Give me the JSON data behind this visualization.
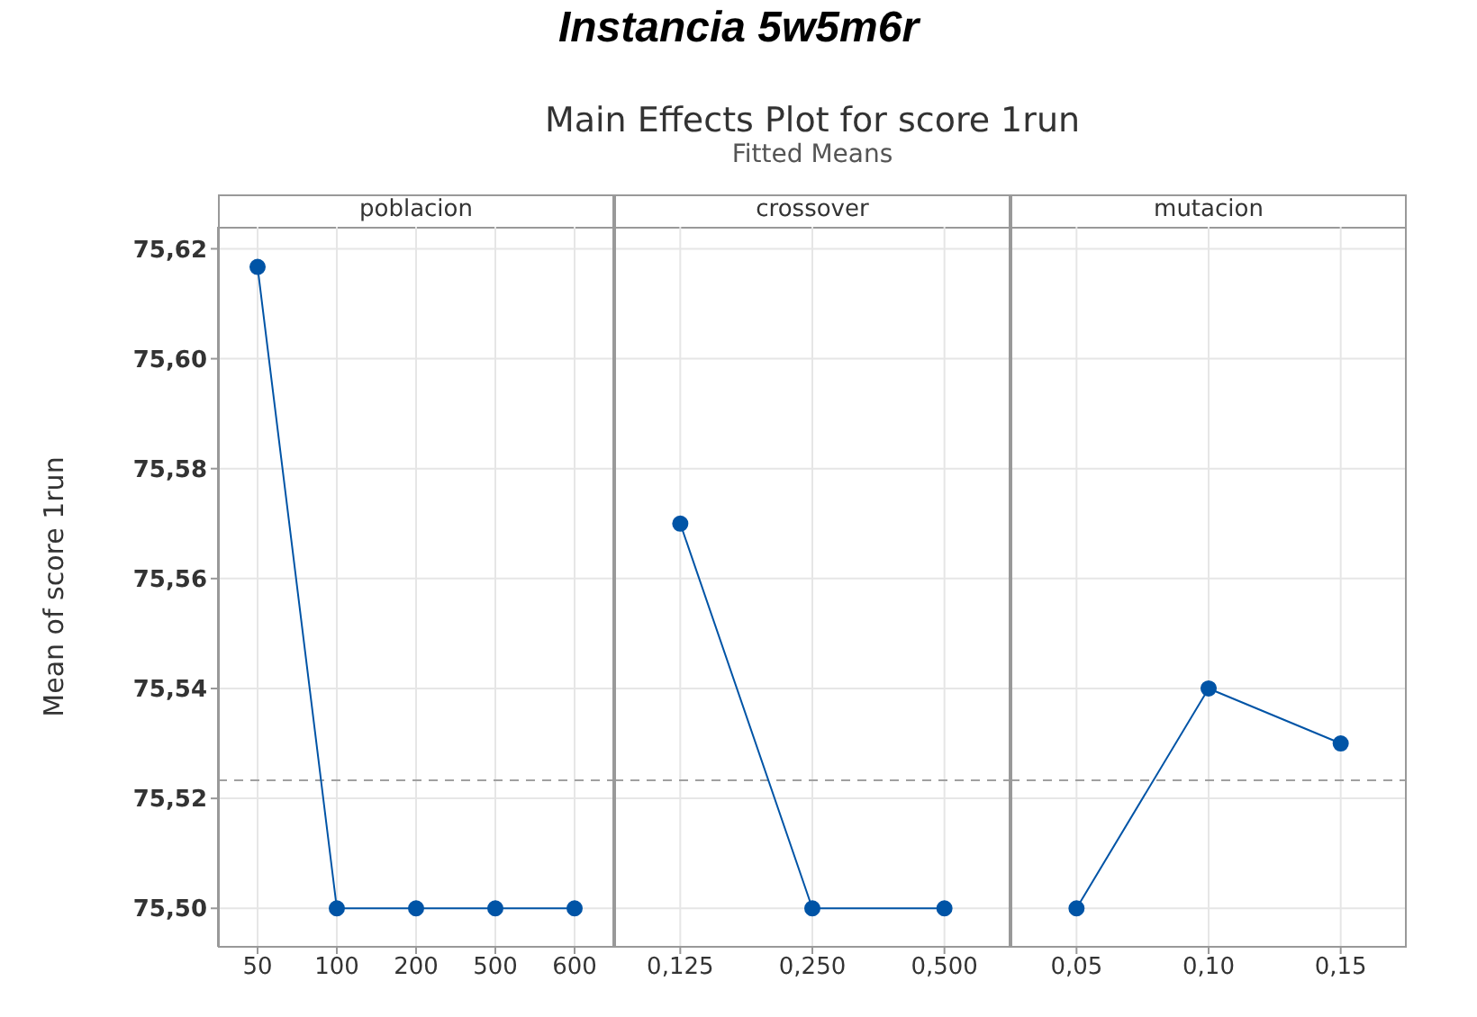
{
  "chart_data": [
    {
      "type": "line",
      "title": "poblacion",
      "ylabel": "Mean of score 1run",
      "annotations": [
        "Instancia 5w5m6r",
        "Main Effects Plot for score 1run",
        "Fitted Means"
      ],
      "categories": [
        "50",
        "100",
        "200",
        "500",
        "600"
      ],
      "series": [
        {
          "color": "#0054a6",
          "values": [
            75.6167,
            75.5,
            75.5,
            75.5,
            75.5
          ]
        }
      ],
      "ylim": [
        75.493,
        75.624
      ],
      "yticks": [
        {
          "value": 75.5,
          "label": "75,50"
        },
        {
          "value": 75.52,
          "label": "75,52"
        },
        {
          "value": 75.54,
          "label": "75,54"
        },
        {
          "value": 75.56,
          "label": "75,56"
        },
        {
          "value": 75.58,
          "label": "75,58"
        },
        {
          "value": 75.6,
          "label": "75,60"
        },
        {
          "value": 75.62,
          "label": "75,62"
        }
      ],
      "ref_lines": [
        {
          "axis": "y",
          "value": 75.5233,
          "color": "#a0a0a0",
          "line_style": "dashed"
        }
      ],
      "grid": true,
      "marker": "circle",
      "legend": false
    },
    {
      "type": "line",
      "title": "crossover",
      "categories": [
        "0,125",
        "0,250",
        "0,500"
      ],
      "series": [
        {
          "color": "#0054a6",
          "values": [
            75.57,
            75.5,
            75.5
          ]
        }
      ],
      "ylim": [
        75.493,
        75.624
      ],
      "yticks": [
        75.5,
        75.52,
        75.54,
        75.56,
        75.58,
        75.6,
        75.62
      ],
      "ref_lines": [
        {
          "axis": "y",
          "value": 75.5233,
          "color": "#a0a0a0",
          "line_style": "dashed"
        }
      ],
      "grid": true,
      "marker": "circle",
      "legend": false,
      "tick_labels": "x"
    },
    {
      "type": "line",
      "title": "mutacion",
      "categories": [
        "0,05",
        "0,10",
        "0,15"
      ],
      "series": [
        {
          "color": "#0054a6",
          "values": [
            75.5,
            75.54,
            75.53
          ]
        }
      ],
      "ylim": [
        75.493,
        75.624
      ],
      "yticks": [
        75.5,
        75.52,
        75.54,
        75.56,
        75.58,
        75.6,
        75.62
      ],
      "ref_lines": [
        {
          "axis": "y",
          "value": 75.5233,
          "color": "#a0a0a0",
          "line_style": "dashed"
        }
      ],
      "grid": true,
      "marker": "circle",
      "legend": false,
      "tick_labels": "x"
    }
  ]
}
